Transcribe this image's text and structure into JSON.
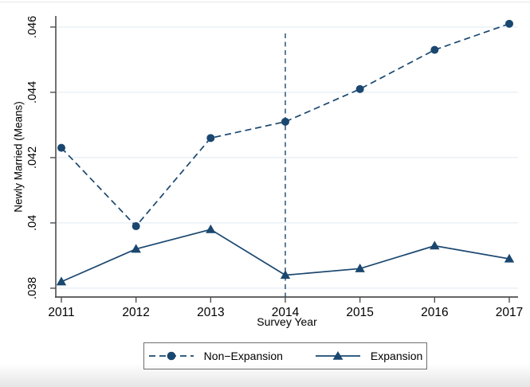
{
  "figure": {
    "accent": "#1a476f",
    "grid_color": "#e9f1f6",
    "axis_color": "#4f4f4f",
    "legend_border": "#6f6f6f",
    "background": "#ffffff"
  },
  "chart_data": {
    "type": "line",
    "title": "",
    "xlabel": "Survey Year",
    "ylabel": "Newly Married (Means)",
    "x": [
      2011,
      2012,
      2013,
      2014,
      2015,
      2016,
      2017
    ],
    "x_tick_labels": [
      "2011",
      "2012",
      "2013",
      "2014",
      "2015",
      "2016",
      "2017"
    ],
    "y_ticks": [
      0.038,
      0.04,
      0.042,
      0.044,
      0.046
    ],
    "y_tick_labels": [
      ".038",
      ".04",
      ".042",
      ".044",
      ".046"
    ],
    "ylim": [
      0.03773,
      0.04634
    ],
    "grid": "horizontal",
    "legend_position": "bottom-center",
    "reference_line": {
      "x": 2014,
      "style": "dashed"
    },
    "series": [
      {
        "name": "Non−Expansion",
        "marker": "circle",
        "line_style": "dashed",
        "color": "#1a476f",
        "values": [
          0.0423,
          0.0399,
          0.0426,
          0.0431,
          0.0441,
          0.0453,
          0.0461
        ]
      },
      {
        "name": "Expansion",
        "marker": "triangle",
        "line_style": "solid",
        "color": "#1a476f",
        "values": [
          0.0382,
          0.0392,
          0.0398,
          0.0384,
          0.0386,
          0.0393,
          0.0389
        ]
      }
    ]
  }
}
